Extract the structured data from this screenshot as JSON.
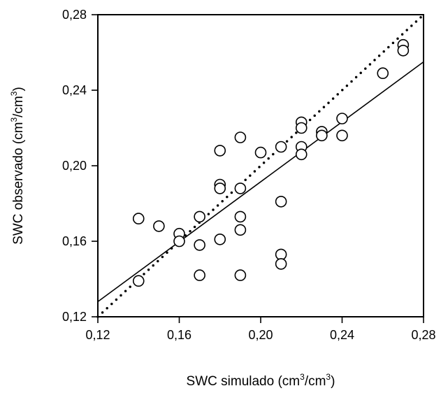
{
  "chart_data": {
    "type": "scatter",
    "title": "",
    "xlabel": {
      "main": "SWC simulado (cm",
      "sup1": "3",
      "mid": "/cm",
      "sup2": "3",
      "end": ")"
    },
    "ylabel": {
      "main": "SWC observado (cm",
      "sup1": "3",
      "mid": "/cm",
      "sup2": "3",
      "end": ")"
    },
    "xlim": [
      0.12,
      0.28
    ],
    "ylim": [
      0.12,
      0.28
    ],
    "xticks": [
      0.12,
      0.16,
      0.2,
      0.24,
      0.28
    ],
    "yticks": [
      0.12,
      0.16,
      0.2,
      0.24,
      0.28
    ],
    "xtick_labels": [
      "0,12",
      "0,16",
      "0,20",
      "0,24",
      "0,28"
    ],
    "ytick_labels": [
      "0,12",
      "0,16",
      "0,20",
      "0,24",
      "0,28"
    ],
    "grid": false,
    "legend": "none",
    "points": [
      {
        "x": 0.14,
        "y": 0.172
      },
      {
        "x": 0.14,
        "y": 0.139
      },
      {
        "x": 0.15,
        "y": 0.168
      },
      {
        "x": 0.16,
        "y": 0.164
      },
      {
        "x": 0.16,
        "y": 0.16
      },
      {
        "x": 0.17,
        "y": 0.173
      },
      {
        "x": 0.17,
        "y": 0.158
      },
      {
        "x": 0.17,
        "y": 0.142
      },
      {
        "x": 0.18,
        "y": 0.208
      },
      {
        "x": 0.18,
        "y": 0.19
      },
      {
        "x": 0.18,
        "y": 0.188
      },
      {
        "x": 0.18,
        "y": 0.161
      },
      {
        "x": 0.19,
        "y": 0.215
      },
      {
        "x": 0.19,
        "y": 0.188
      },
      {
        "x": 0.19,
        "y": 0.173
      },
      {
        "x": 0.19,
        "y": 0.166
      },
      {
        "x": 0.19,
        "y": 0.142
      },
      {
        "x": 0.2,
        "y": 0.207
      },
      {
        "x": 0.21,
        "y": 0.21
      },
      {
        "x": 0.21,
        "y": 0.181
      },
      {
        "x": 0.21,
        "y": 0.153
      },
      {
        "x": 0.21,
        "y": 0.148
      },
      {
        "x": 0.22,
        "y": 0.223
      },
      {
        "x": 0.22,
        "y": 0.22
      },
      {
        "x": 0.22,
        "y": 0.21
      },
      {
        "x": 0.22,
        "y": 0.206
      },
      {
        "x": 0.23,
        "y": 0.218
      },
      {
        "x": 0.23,
        "y": 0.216
      },
      {
        "x": 0.24,
        "y": 0.225
      },
      {
        "x": 0.24,
        "y": 0.216
      },
      {
        "x": 0.26,
        "y": 0.249
      },
      {
        "x": 0.27,
        "y": 0.264
      },
      {
        "x": 0.27,
        "y": 0.261
      }
    ],
    "lines": [
      {
        "style": "solid",
        "x": [
          0.12,
          0.28
        ],
        "y": [
          0.128,
          0.255
        ]
      },
      {
        "style": "dotted",
        "x": [
          0.12,
          0.28
        ],
        "y": [
          0.12,
          0.28
        ]
      }
    ],
    "colors": {
      "marker_stroke": "#000000",
      "marker_fill": "#ffffff",
      "line": "#000000"
    }
  }
}
